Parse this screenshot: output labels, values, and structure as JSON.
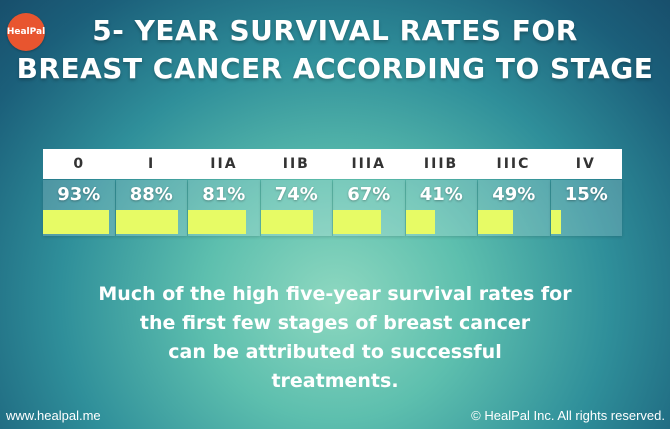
{
  "brand": {
    "logo_text": "HealPal"
  },
  "title_line1": "5- YEAR SURVIVAL RATES FOR",
  "title_line2": "BREAST CANCER ACCORDING TO STAGE",
  "chart_data": {
    "type": "bar",
    "categories": [
      "0",
      "I",
      "IIA",
      "IIB",
      "IIIA",
      "IIIB",
      "IIIC",
      "IV"
    ],
    "values": [
      93,
      88,
      81,
      74,
      67,
      41,
      49,
      15
    ],
    "labels": [
      "93%",
      "88%",
      "81%",
      "74%",
      "67%",
      "41%",
      "49%",
      "15%"
    ],
    "ylim": [
      0,
      100
    ],
    "bar_color": "#e7fb65"
  },
  "caption_lines": [
    "Much of the high five-year survival rates for",
    "the first few stages of breast cancer",
    "can be attributed to successful",
    "treatments."
  ],
  "footer": {
    "website": "www.healpal.me",
    "copyright": "© HealPal Inc. All rights reserved."
  }
}
